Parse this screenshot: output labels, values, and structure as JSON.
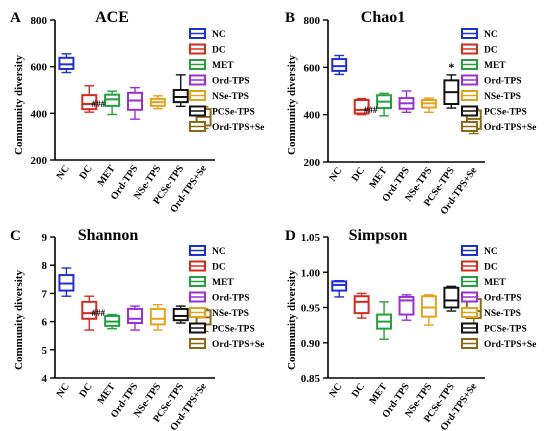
{
  "group_names": [
    "NC",
    "DC",
    "MET",
    "Ord-TPS",
    "NSe-TPS",
    "PCSe-TPS",
    "Ord-TPS+Se"
  ],
  "group_colors": [
    "#1f2fd6",
    "#d62a1f",
    "#22a03a",
    "#9b2fd6",
    "#e6a21a",
    "#111111",
    "#8a6a14"
  ],
  "chart_data": [
    {
      "type": "box",
      "panel_letter": "A",
      "title": "ACE",
      "ylabel": "Community diversity",
      "ylim": [
        200,
        800
      ],
      "yticks": [
        "200",
        "400",
        "600",
        "800"
      ],
      "ytick_values": [
        200,
        400,
        600,
        800
      ],
      "annotations": [
        {
          "group": "DC",
          "text": "###"
        }
      ],
      "boxes": [
        {
          "group": "NC",
          "min": 575,
          "q1": 590,
          "median": 610,
          "q3": 638,
          "max": 655
        },
        {
          "group": "DC",
          "min": 405,
          "q1": 418,
          "median": 440,
          "q3": 478,
          "max": 518
        },
        {
          "group": "MET",
          "min": 395,
          "q1": 432,
          "median": 460,
          "q3": 480,
          "max": 495
        },
        {
          "group": "Ord-TPS",
          "min": 375,
          "q1": 415,
          "median": 455,
          "q3": 488,
          "max": 510
        },
        {
          "group": "NSe-TPS",
          "min": 420,
          "q1": 432,
          "median": 448,
          "q3": 462,
          "max": 475
        },
        {
          "group": "PCSe-TPS",
          "min": 430,
          "q1": 448,
          "median": 470,
          "q3": 500,
          "max": 565
        },
        {
          "group": "Ord-TPS+Se",
          "min": 335,
          "q1": 348,
          "median": 385,
          "q3": 418,
          "max": 428
        }
      ]
    },
    {
      "type": "box",
      "panel_letter": "B",
      "title": "Chao1",
      "ylabel": "Community diversity",
      "ylim": [
        200,
        800
      ],
      "yticks": [
        "200",
        "400",
        "600",
        "800"
      ],
      "ytick_values": [
        200,
        400,
        600,
        800
      ],
      "annotations": [
        {
          "group": "DC",
          "text": "###"
        },
        {
          "group": "PCSe-TPS",
          "text": "*"
        }
      ],
      "boxes": [
        {
          "group": "NC",
          "min": 570,
          "q1": 585,
          "median": 605,
          "q3": 635,
          "max": 650
        },
        {
          "group": "DC",
          "min": 400,
          "q1": 405,
          "median": 420,
          "q3": 462,
          "max": 468
        },
        {
          "group": "MET",
          "min": 395,
          "q1": 428,
          "median": 455,
          "q3": 482,
          "max": 490
        },
        {
          "group": "Ord-TPS",
          "min": 410,
          "q1": 425,
          "median": 448,
          "q3": 470,
          "max": 500
        },
        {
          "group": "NSe-TPS",
          "min": 410,
          "q1": 430,
          "median": 448,
          "q3": 462,
          "max": 470
        },
        {
          "group": "PCSe-TPS",
          "min": 428,
          "q1": 445,
          "median": 495,
          "q3": 545,
          "max": 568
        },
        {
          "group": "Ord-TPS+Se",
          "min": 320,
          "q1": 340,
          "median": 382,
          "q3": 418,
          "max": 425
        }
      ]
    },
    {
      "type": "box",
      "panel_letter": "C",
      "title": "Shannon",
      "ylabel": "Community diversity",
      "ylim": [
        4,
        9
      ],
      "yticks": [
        "4",
        "5",
        "6",
        "7",
        "8",
        "9"
      ],
      "ytick_values": [
        4,
        5,
        6,
        7,
        8,
        9
      ],
      "annotations": [
        {
          "group": "DC",
          "text": "###"
        }
      ],
      "boxes": [
        {
          "group": "NC",
          "min": 6.9,
          "q1": 7.1,
          "median": 7.35,
          "q3": 7.65,
          "max": 7.9
        },
        {
          "group": "DC",
          "min": 5.7,
          "q1": 6.1,
          "median": 6.3,
          "q3": 6.7,
          "max": 6.9
        },
        {
          "group": "MET",
          "min": 5.75,
          "q1": 5.85,
          "median": 6.0,
          "q3": 6.2,
          "max": 6.25
        },
        {
          "group": "Ord-TPS",
          "min": 5.7,
          "q1": 5.95,
          "median": 6.1,
          "q3": 6.45,
          "max": 6.55
        },
        {
          "group": "NSe-TPS",
          "min": 5.7,
          "q1": 5.9,
          "median": 6.1,
          "q3": 6.45,
          "max": 6.6
        },
        {
          "group": "PCSe-TPS",
          "min": 5.95,
          "q1": 6.05,
          "median": 6.2,
          "q3": 6.45,
          "max": 6.55
        },
        {
          "group": "Ord-TPS+Se",
          "min": 5.65,
          "q1": 5.9,
          "median": 6.15,
          "q3": 6.4,
          "max": 6.45
        }
      ]
    },
    {
      "type": "box",
      "panel_letter": "D",
      "title": "Simpson",
      "ylabel": "Community diversity",
      "ylim": [
        0.85,
        1.05
      ],
      "yticks": [
        "0.85",
        "0.90",
        "0.95",
        "1.00",
        "1.05"
      ],
      "ytick_values": [
        0.85,
        0.9,
        0.95,
        1.0,
        1.05
      ],
      "annotations": [],
      "boxes": [
        {
          "group": "NC",
          "min": 0.965,
          "q1": 0.974,
          "median": 0.982,
          "q3": 0.987,
          "max": 0.988
        },
        {
          "group": "DC",
          "min": 0.935,
          "q1": 0.942,
          "median": 0.958,
          "q3": 0.966,
          "max": 0.97
        },
        {
          "group": "MET",
          "min": 0.905,
          "q1": 0.92,
          "median": 0.93,
          "q3": 0.94,
          "max": 0.958
        },
        {
          "group": "Ord-TPS",
          "min": 0.932,
          "q1": 0.94,
          "median": 0.96,
          "q3": 0.965,
          "max": 0.968
        },
        {
          "group": "NSe-TPS",
          "min": 0.925,
          "q1": 0.937,
          "median": 0.95,
          "q3": 0.966,
          "max": 0.968
        },
        {
          "group": "PCSe-TPS",
          "min": 0.945,
          "q1": 0.95,
          "median": 0.96,
          "q3": 0.978,
          "max": 0.98
        },
        {
          "group": "Ord-TPS+Se",
          "min": 0.915,
          "q1": 0.935,
          "median": 0.945,
          "q3": 0.962,
          "max": 0.966
        }
      ]
    }
  ]
}
